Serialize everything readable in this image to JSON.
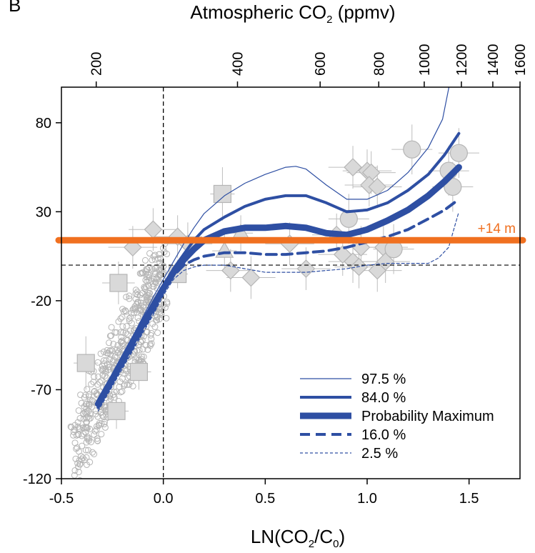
{
  "chart_data": {
    "type": "scatter",
    "panel_label": "B",
    "title": "",
    "xlabel_parts": [
      "LN(CO",
      "2",
      "/C",
      "0",
      ")"
    ],
    "top_axis_label_parts": [
      "Atmospheric CO",
      "2",
      " (ppmv)"
    ],
    "ylabel": "",
    "xlim": [
      -0.5,
      1.75
    ],
    "ylim": [
      -120,
      100
    ],
    "x_ticks": [
      -0.5,
      0.0,
      0.5,
      1.0,
      1.5
    ],
    "x_tick_labels": [
      "-0.5",
      "0.0",
      "0.5",
      "1.0",
      "1.5"
    ],
    "y_ticks": [
      -120,
      -70,
      -20,
      30,
      80
    ],
    "y_tick_labels": [
      "-120",
      "-70",
      "-20",
      "30",
      "80"
    ],
    "top_ticks": [
      200,
      400,
      600,
      800,
      1000,
      1200,
      1400,
      1600
    ],
    "top_tick_labels": [
      "200",
      "400",
      "600",
      "800",
      "1000",
      "1200",
      "1400",
      "1600"
    ],
    "reference_co2_ppmv": 278,
    "grid": false,
    "legend_position": "bottom-right",
    "colors": {
      "series": "#2e4fa3",
      "reference": "#f07020",
      "markers_fill": "#d9d9d9",
      "markers_edge": "#b5b5b5",
      "errorbars": "#bdbdbd"
    },
    "reference_lines": [
      {
        "axis": "x",
        "value": 0.0,
        "style": "dashed"
      },
      {
        "axis": "y",
        "value": 0,
        "style": "dashed"
      }
    ],
    "threshold_line": {
      "y": 14,
      "label": "+14 m",
      "color": "#f07020"
    },
    "series": [
      {
        "name": "97.5 %",
        "style": "thin",
        "x": [
          -0.32,
          -0.25,
          -0.15,
          -0.05,
          0.0,
          0.05,
          0.1,
          0.15,
          0.2,
          0.3,
          0.4,
          0.5,
          0.6,
          0.65,
          0.7,
          0.8,
          0.9,
          1.0,
          1.1,
          1.2,
          1.3,
          1.37,
          1.41
        ],
        "y": [
          -77,
          -62,
          -40,
          -18,
          -8,
          2,
          12,
          21,
          29,
          39,
          46,
          51,
          55,
          55.5,
          54,
          45,
          37,
          37,
          42,
          52,
          66,
          82,
          105
        ]
      },
      {
        "name": "84.0 %",
        "style": "medium",
        "x": [
          -0.32,
          -0.25,
          -0.15,
          -0.05,
          0.0,
          0.05,
          0.1,
          0.15,
          0.2,
          0.3,
          0.4,
          0.5,
          0.6,
          0.7,
          0.8,
          0.9,
          1.0,
          1.1,
          1.2,
          1.3,
          1.38,
          1.45
        ],
        "y": [
          -77,
          -63,
          -42,
          -21,
          -12,
          -2,
          6,
          14,
          20,
          27,
          33,
          37,
          39,
          39,
          35,
          30,
          31,
          35,
          42,
          51,
          62,
          74
        ]
      },
      {
        "name": "Probability Maximum",
        "style": "thick",
        "x": [
          -0.32,
          -0.25,
          -0.15,
          -0.05,
          0.0,
          0.05,
          0.1,
          0.15,
          0.2,
          0.3,
          0.4,
          0.5,
          0.6,
          0.7,
          0.8,
          0.9,
          1.0,
          1.1,
          1.2,
          1.3,
          1.38,
          1.45
        ],
        "y": [
          -78,
          -64,
          -43,
          -23,
          -13,
          -4,
          3,
          9,
          14,
          19,
          21,
          21,
          22,
          21,
          18,
          17,
          20,
          25,
          31,
          39,
          47,
          55
        ]
      },
      {
        "name": "16.0 %",
        "style": "dashed",
        "x": [
          -0.32,
          -0.25,
          -0.15,
          -0.05,
          0.0,
          0.05,
          0.1,
          0.15,
          0.2,
          0.3,
          0.4,
          0.5,
          0.6,
          0.7,
          0.8,
          0.9,
          1.0,
          1.1,
          1.2,
          1.3,
          1.38,
          1.45
        ],
        "y": [
          -80,
          -66,
          -46,
          -26,
          -15,
          -6,
          0,
          3,
          5,
          7,
          7,
          6,
          6,
          7,
          8,
          10,
          13,
          16,
          20,
          26,
          31,
          37
        ]
      },
      {
        "name": "2.5 %",
        "style": "dotted",
        "x": [
          -0.32,
          -0.25,
          -0.15,
          -0.05,
          0.0,
          0.05,
          0.1,
          0.15,
          0.2,
          0.3,
          0.4,
          0.5,
          0.6,
          0.7,
          0.8,
          0.9,
          1.0,
          1.1,
          1.2,
          1.3,
          1.35,
          1.4,
          1.45
        ],
        "y": [
          -82,
          -68,
          -48,
          -28,
          -17,
          -8,
          -3,
          -1,
          0,
          0,
          -2,
          -4,
          -4,
          -4,
          -3,
          -2,
          0,
          1,
          1,
          1,
          4,
          10,
          30
        ]
      }
    ],
    "markers_squares": [
      {
        "x": 0.29,
        "y": 40,
        "xerr": 0.06,
        "yerr": 15
      },
      {
        "x": -0.38,
        "y": -55,
        "xerr": 0.06,
        "yerr": 15
      },
      {
        "x": -0.22,
        "y": -10,
        "xerr": 0.08,
        "yerr": 12
      },
      {
        "x": -0.23,
        "y": -82,
        "xerr": 0.06,
        "yerr": 10
      },
      {
        "x": -0.12,
        "y": -60,
        "xerr": 0.06,
        "yerr": 10
      },
      {
        "x": 0.07,
        "y": -5,
        "xerr": 0.05,
        "yerr": 8
      }
    ],
    "markers_diamonds": [
      {
        "x": -0.05,
        "y": 20
      },
      {
        "x": -0.15,
        "y": 10
      },
      {
        "x": 0.07,
        "y": 16
      },
      {
        "x": 0.12,
        "y": 12
      },
      {
        "x": 0.33,
        "y": -3
      },
      {
        "x": 0.43,
        "y": -7
      },
      {
        "x": 0.62,
        "y": 12
      },
      {
        "x": 0.7,
        "y": -2
      },
      {
        "x": 0.85,
        "y": 17
      },
      {
        "x": 0.88,
        "y": 6
      },
      {
        "x": 0.93,
        "y": 55
      },
      {
        "x": 0.97,
        "y": 10
      },
      {
        "x": 1.0,
        "y": 53
      },
      {
        "x": 1.02,
        "y": 52
      },
      {
        "x": 1.01,
        "y": 45
      },
      {
        "x": 1.05,
        "y": 44
      },
      {
        "x": 1.08,
        "y": 10
      },
      {
        "x": 0.93,
        "y": 2
      },
      {
        "x": 0.96,
        "y": -1
      },
      {
        "x": 1.05,
        "y": -3
      },
      {
        "x": 1.09,
        "y": 2
      }
    ],
    "markers_triangles": [
      {
        "x": 0.38,
        "y": 18
      },
      {
        "x": 0.3,
        "y": 8
      }
    ],
    "markers_circles": [
      {
        "x": 1.22,
        "y": 65
      },
      {
        "x": 1.45,
        "y": 63
      },
      {
        "x": 1.4,
        "y": 53
      },
      {
        "x": 1.42,
        "y": 44
      },
      {
        "x": 1.13,
        "y": 9
      },
      {
        "x": 0.91,
        "y": 26
      }
    ],
    "scatter_cloud_note": "dense cloud of small open grey circles spanning roughly x -0.42..0.0, y -115..-5"
  }
}
